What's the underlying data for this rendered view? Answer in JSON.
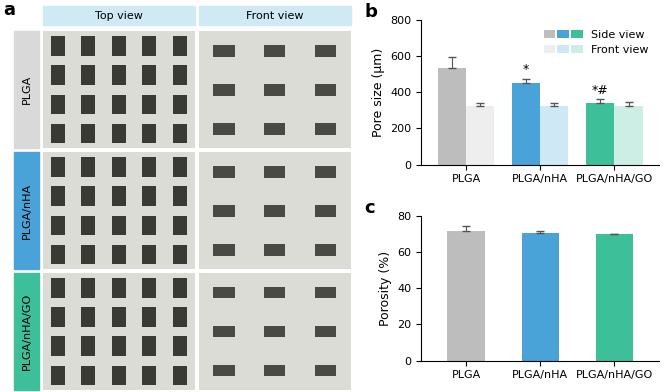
{
  "image_panel": {
    "label": "a",
    "columns": [
      "Top view",
      "Front view"
    ],
    "rows": [
      "PLGA",
      "PLGA/nHA",
      "PLGA/nHA/GO"
    ],
    "row_colors": [
      "#d9d9d9",
      "#4aa3d8",
      "#3dbf9a"
    ],
    "header_color": "#cfe9f5"
  },
  "chart_data": [
    {
      "type": "bar",
      "title": "b",
      "y_label": "Pore size (μm)",
      "categories": [
        "PLGA",
        "PLGA/nHA",
        "PLGA/nHA/GO"
      ],
      "series": [
        {
          "name": "Side view",
          "colors": [
            "#bdbdbd",
            "#4aa3d8",
            "#3dbf9a"
          ],
          "values": [
            535,
            450,
            340
          ],
          "errors": [
            60,
            25,
            20
          ]
        },
        {
          "name": "Front view",
          "colors": [
            "#eeeeee",
            "#cfe8f5",
            "#cdeee4"
          ],
          "values": [
            325,
            325,
            325
          ],
          "errors": [
            15,
            15,
            22
          ]
        }
      ],
      "annotations": [
        {
          "text": "*",
          "category": "PLGA/nHA",
          "series": "Side view"
        },
        {
          "text": "*#",
          "category": "PLGA/nHA/GO",
          "series": "Side view"
        }
      ],
      "ylim": [
        0,
        800
      ],
      "yticks": [
        0,
        200,
        400,
        600,
        800
      ],
      "legend": "upper right"
    },
    {
      "type": "bar",
      "title": "c",
      "y_label": "Porosity (%)",
      "categories": [
        "PLGA",
        "PLGA/nHA",
        "PLGA/nHA/GO"
      ],
      "values": [
        71.5,
        70.5,
        69.8
      ],
      "errors": [
        2.5,
        0.8,
        0.3
      ],
      "colors": [
        "#bdbdbd",
        "#4aa3d8",
        "#3dbf9a"
      ],
      "ylim": [
        0,
        80
      ],
      "yticks": [
        0,
        20,
        40,
        60,
        80
      ]
    }
  ]
}
